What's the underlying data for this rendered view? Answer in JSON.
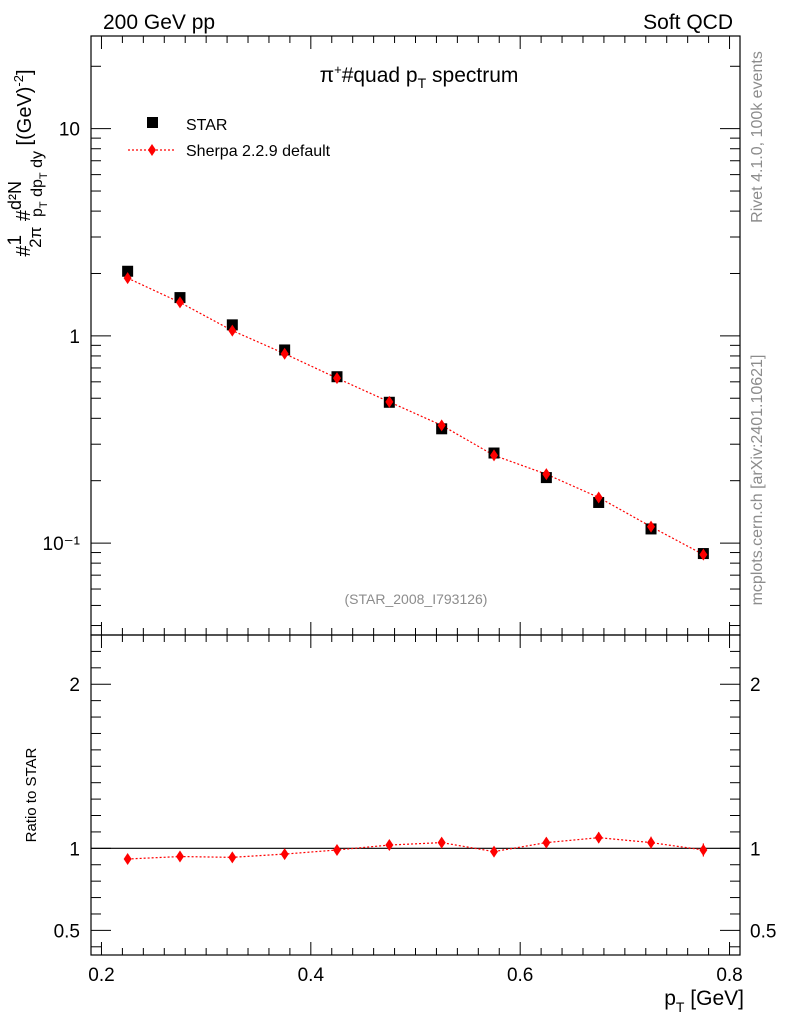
{
  "header": {
    "left_label": "200 GeV pp",
    "right_label": "Soft QCD"
  },
  "side_labels": {
    "rivet": "Rivet 4.1.0,  100k events",
    "source": "mcplots.cern.ch [arXiv:2401.10621]"
  },
  "chart_data": {
    "type": "scatter",
    "title": "π⁺#quad p_T spectrum",
    "analysis_label": "(STAR_2008_I793126)",
    "main_panel": {
      "yscale": "log",
      "ylabel": "#frac{1}{2π} #frac{d²N}{p_T dp_T dy} [(GeV)⁻²]",
      "ylim": [
        0.036,
        28
      ],
      "y_ticks": [
        {
          "value": 10,
          "label": "10"
        },
        {
          "value": 1,
          "label": "1"
        },
        {
          "value": 0.1,
          "label": "10⁻¹"
        }
      ]
    },
    "ratio_panel": {
      "ylabel": "Ratio to STAR",
      "ylim": [
        0.35,
        2.3
      ],
      "y_ticks_left": [
        {
          "value": 2,
          "label": "2"
        },
        {
          "value": 1,
          "label": "1"
        },
        {
          "value": 0.5,
          "label": "0.5"
        }
      ],
      "y_ticks_right": [
        {
          "value": 2,
          "label": "2"
        },
        {
          "value": 1,
          "label": "1"
        },
        {
          "value": 0.5,
          "label": "0.5"
        }
      ]
    },
    "x": {
      "label": "p_T [GeV]",
      "xlim": [
        0.19,
        0.81
      ],
      "ticks": [
        {
          "value": 0.2,
          "label": "0.2"
        },
        {
          "value": 0.4,
          "label": "0.4"
        },
        {
          "value": 0.6,
          "label": "0.6"
        },
        {
          "value": 0.8,
          "label": "0.8"
        }
      ]
    },
    "x_values": [
      0.225,
      0.275,
      0.325,
      0.375,
      0.425,
      0.475,
      0.525,
      0.575,
      0.625,
      0.675,
      0.725,
      0.775
    ],
    "series": [
      {
        "name": "STAR",
        "marker": "square",
        "color": "#000000",
        "values": [
          2.05,
          1.53,
          1.13,
          0.855,
          0.635,
          0.478,
          0.356,
          0.272,
          0.207,
          0.157,
          0.117,
          0.089
        ]
      },
      {
        "name": "Sherpa 2.2.9 default",
        "marker": "diamond",
        "color": "#ff0000",
        "line": "dotted",
        "values": [
          1.9,
          1.45,
          1.06,
          0.82,
          0.625,
          0.48,
          0.37,
          0.265,
          0.215,
          0.166,
          0.12,
          0.088
        ],
        "ratio": [
          0.935,
          0.95,
          0.945,
          0.965,
          0.99,
          1.02,
          1.035,
          0.98,
          1.035,
          1.065,
          1.035,
          0.99
        ],
        "ratio_err": [
          0.018,
          0.018,
          0.018,
          0.018,
          0.018,
          0.02,
          0.022,
          0.025,
          0.03,
          0.033,
          0.036,
          0.04
        ]
      }
    ]
  }
}
